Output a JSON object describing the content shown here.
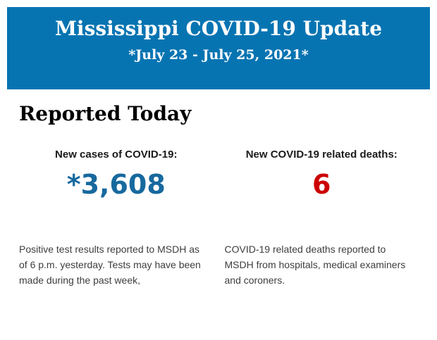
{
  "header": {
    "title": "Mississippi COVID-19 Update",
    "subtitle": "*July 23 - July 25, 2021*",
    "background_color": "#0774b2",
    "text_color": "#ffffff"
  },
  "main": {
    "heading": "Reported Today",
    "stats": [
      {
        "label": "New cases of COVID-19:",
        "value": "*3,608",
        "value_color": "#17699e",
        "description": "Positive test results reported to MSDH as of 6 p.m. yesterday. Tests may have been made during the past week,"
      },
      {
        "label": "New COVID-19 related deaths:",
        "value": "6",
        "value_color": "#cc0000",
        "description": "COVID-19 related deaths reported to MSDH from hospitals, medical examiners and coroners."
      }
    ]
  }
}
